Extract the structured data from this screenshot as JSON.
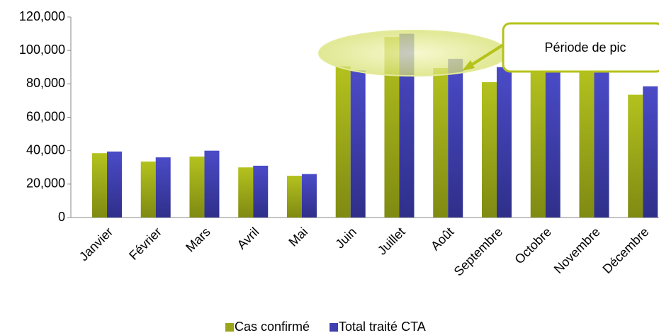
{
  "chart_data": {
    "type": "bar",
    "categories": [
      "Janvier",
      "Février",
      "Mars",
      "Avril",
      "Mai",
      "Juin",
      "Juillet",
      "Août",
      "Septembre",
      "Octobre",
      "Novembre",
      "Décembre"
    ],
    "series": [
      {
        "name": "Cas confirmé",
        "color": "#9aa51a",
        "values": [
          38500,
          33500,
          36500,
          30000,
          25000,
          90500,
          108000,
          89500,
          81000,
          90000,
          90000,
          73500
        ]
      },
      {
        "name": "Total traité CTA",
        "color": "#3f3fb0",
        "values": [
          39500,
          36000,
          40000,
          31000,
          26000,
          88000,
          110000,
          95000,
          90000,
          88000,
          88000,
          78500
        ]
      }
    ],
    "ylim": [
      0,
      120000
    ],
    "yticks": [
      0,
      {
        "value": 20000,
        "label": "20,000"
      },
      {
        "value": 40000,
        "label": "40,000"
      },
      {
        "value": 60000,
        "label": "60,000"
      },
      {
        "value": 80000,
        "label": "80,000"
      },
      {
        "value": 100000,
        "label": "100,000"
      },
      {
        "value": 120000,
        "label": "120,000"
      }
    ],
    "grid": false,
    "legend": "bottom",
    "annotations": [
      {
        "text": "Période de pic"
      }
    ]
  }
}
